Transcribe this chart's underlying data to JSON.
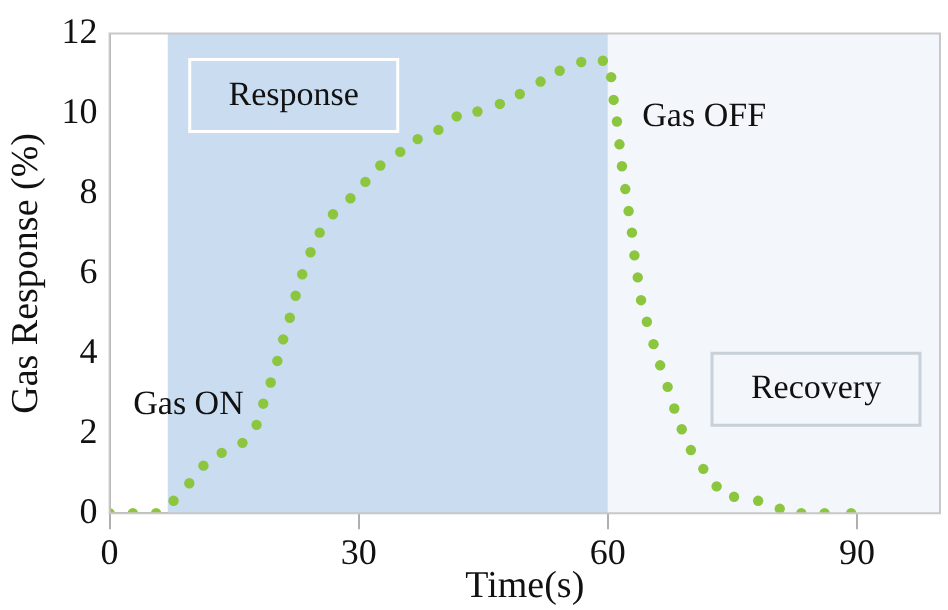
{
  "chart_data": {
    "type": "scatter",
    "xlabel": "Time(s)",
    "ylabel": "Gas Response (%)",
    "xlim": [
      0,
      100
    ],
    "xticks": [
      0,
      30,
      60,
      90
    ],
    "ylim": [
      0,
      12
    ],
    "yticks": [
      0,
      2,
      4,
      6,
      8,
      10,
      12
    ],
    "grid": false,
    "legend": false,
    "marker": "circle",
    "bands": [
      {
        "axis": "x",
        "from": 7,
        "to": 60,
        "label": "Response",
        "color": "#c9dcf0"
      },
      {
        "axis": "x",
        "from": 60,
        "to": 100,
        "label": "Recovery",
        "color": "#f3f7fc"
      }
    ],
    "annotations": [
      "Gas ON",
      "Gas OFF"
    ],
    "series": [
      {
        "color": "#8cc63f",
        "x": [
          0,
          2.8,
          5.6,
          7.7,
          9.6,
          11.3,
          13.5,
          16,
          17.7,
          18.5,
          19.4,
          20.2,
          20.9,
          21.7,
          22.4,
          23.2,
          24.2,
          25.3,
          26.9,
          29,
          30.8,
          32.6,
          35,
          37.1,
          39.6,
          41.8,
          44.3,
          47,
          49.4,
          51.9,
          54.2,
          56.8,
          59.4,
          60.4,
          60.7,
          61.1,
          61.4,
          61.7,
          62.1,
          62.5,
          62.9,
          63.2,
          63.6,
          64,
          64.7,
          65.5,
          66.3,
          67.2,
          68,
          68.9,
          70,
          71.5,
          73.1,
          75.2,
          78.1,
          80.7,
          83.3,
          86.1,
          89.3
        ],
        "values": [
          0,
          0,
          0,
          0.31,
          0.75,
          1.19,
          1.51,
          1.76,
          2.21,
          2.74,
          3.27,
          3.81,
          4.35,
          4.89,
          5.44,
          5.98,
          6.53,
          7.02,
          7.48,
          7.88,
          8.29,
          8.7,
          9.04,
          9.36,
          9.59,
          9.93,
          10.05,
          10.24,
          10.49,
          10.8,
          11.07,
          11.29,
          11.32,
          10.91,
          10.34,
          9.8,
          9.23,
          8.68,
          8.11,
          7.56,
          7.02,
          6.45,
          5.9,
          5.33,
          4.79,
          4.23,
          3.7,
          3.16,
          2.62,
          2.1,
          1.58,
          1.11,
          0.67,
          0.41,
          0.31,
          0.11,
          0,
          0,
          0
        ]
      }
    ]
  }
}
